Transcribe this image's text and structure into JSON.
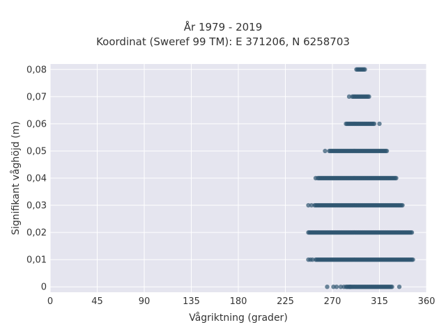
{
  "chart_data": {
    "type": "scatter",
    "title": [
      "År 1979 - 2019",
      "Koordinat (Sweref 99 TM): E 371206, N 6258703"
    ],
    "xlabel": "Vågriktning (grader)",
    "ylabel": "Signifikant våghöjd (m)",
    "xlim": [
      0,
      360
    ],
    "ylim": [
      -0.002,
      0.082
    ],
    "x_ticks": [
      0,
      45,
      90,
      135,
      180,
      225,
      270,
      315,
      360
    ],
    "x_tick_labels": [
      "0",
      "45",
      "90",
      "135",
      "180",
      "225",
      "270",
      "315",
      "360"
    ],
    "y_ticks": [
      0,
      0.01,
      0.02,
      0.03,
      0.04,
      0.05,
      0.06,
      0.07,
      0.08
    ],
    "y_tick_labels": [
      "0",
      "0,01",
      "0,02",
      "0,03",
      "0,04",
      "0,05",
      "0,06",
      "0,07",
      "0,08"
    ],
    "grid": true,
    "legend": false,
    "marker_color": "#2f5570",
    "background_color": "#e5e5ef",
    "grid_color": "#ffffff",
    "series": [
      {
        "bands": [
          {
            "y": 0.0,
            "x_min": 283,
            "x_max": 327,
            "isolated_x": [
              265,
              271,
              274,
              278,
              281,
              287,
              334
            ]
          },
          {
            "y": 0.01,
            "x_min": 254,
            "x_max": 347,
            "isolated_x": [
              247,
              249,
              251
            ]
          },
          {
            "y": 0.02,
            "x_min": 248,
            "x_max": 346,
            "isolated_x": [
              247
            ]
          },
          {
            "y": 0.03,
            "x_min": 253,
            "x_max": 337,
            "isolated_x": [
              247,
              250
            ]
          },
          {
            "y": 0.04,
            "x_min": 256,
            "x_max": 331,
            "isolated_x": [
              254
            ]
          },
          {
            "y": 0.05,
            "x_min": 267,
            "x_max": 322,
            "isolated_x": [
              263
            ]
          },
          {
            "y": 0.06,
            "x_min": 283,
            "x_max": 310,
            "isolated_x": [
              315
            ]
          },
          {
            "y": 0.07,
            "x_min": 289,
            "x_max": 305,
            "isolated_x": [
              286
            ]
          },
          {
            "y": 0.08,
            "x_min": 293,
            "x_max": 301,
            "isolated_x": []
          }
        ]
      }
    ]
  }
}
